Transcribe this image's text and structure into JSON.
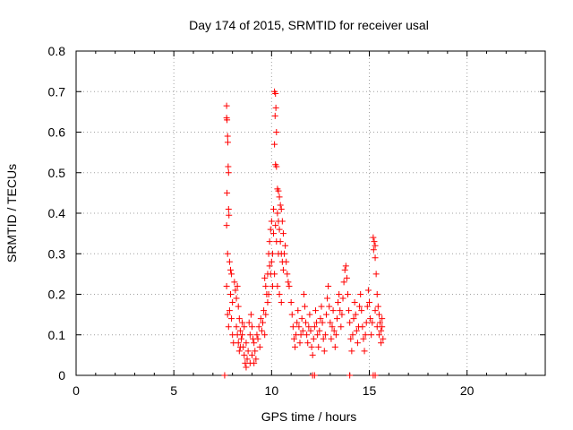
{
  "chart_data": {
    "type": "scatter",
    "title": "Day 174 of 2015, SRMTID for receiver usal",
    "xlabel": "GPS time / hours",
    "ylabel": "SRMTID / TECUs",
    "xlim": [
      0,
      24
    ],
    "ylim": [
      0,
      0.8
    ],
    "x_ticks": [
      0,
      5,
      10,
      15,
      20
    ],
    "y_ticks": [
      0,
      0.1,
      0.2,
      0.3,
      0.4,
      0.5,
      0.6,
      0.7,
      0.8
    ],
    "x_tick_labels": [
      "0",
      "5",
      "10",
      "15",
      "20"
    ],
    "y_tick_labels": [
      "0",
      "0.1",
      "0.2",
      "0.3",
      "0.4",
      "0.5",
      "0.6",
      "0.7",
      "0.8"
    ],
    "grid": true,
    "marker": "+",
    "color": "#ff0000",
    "series": [
      {
        "name": "SRMTID",
        "points": [
          [
            7.6,
            0.0
          ],
          [
            12.1,
            0.0
          ],
          [
            12.2,
            0.0
          ],
          [
            14.0,
            0.0
          ],
          [
            15.2,
            0.0
          ],
          [
            15.3,
            0.0
          ],
          [
            7.7,
            0.665
          ],
          [
            7.7,
            0.635
          ],
          [
            7.72,
            0.63
          ],
          [
            7.75,
            0.59
          ],
          [
            7.76,
            0.575
          ],
          [
            7.78,
            0.515
          ],
          [
            7.8,
            0.5
          ],
          [
            7.72,
            0.45
          ],
          [
            7.8,
            0.41
          ],
          [
            7.82,
            0.395
          ],
          [
            7.7,
            0.37
          ],
          [
            7.75,
            0.3
          ],
          [
            7.85,
            0.28
          ],
          [
            7.9,
            0.26
          ],
          [
            7.95,
            0.25
          ],
          [
            7.7,
            0.22
          ],
          [
            7.9,
            0.2
          ],
          [
            8.0,
            0.18
          ],
          [
            7.75,
            0.15
          ],
          [
            7.8,
            0.12
          ],
          [
            7.85,
            0.16
          ],
          [
            7.95,
            0.14
          ],
          [
            8.0,
            0.1
          ],
          [
            8.05,
            0.08
          ],
          [
            8.1,
            0.23
          ],
          [
            8.15,
            0.21
          ],
          [
            8.2,
            0.19
          ],
          [
            8.25,
            0.22
          ],
          [
            8.3,
            0.17
          ],
          [
            8.35,
            0.14
          ],
          [
            8.2,
            0.12
          ],
          [
            8.25,
            0.1
          ],
          [
            8.3,
            0.08
          ],
          [
            8.35,
            0.06
          ],
          [
            8.4,
            0.11
          ],
          [
            8.45,
            0.09
          ],
          [
            8.5,
            0.13
          ],
          [
            8.55,
            0.07
          ],
          [
            8.6,
            0.05
          ],
          [
            8.65,
            0.03
          ],
          [
            8.7,
            0.02
          ],
          [
            8.75,
            0.04
          ],
          [
            8.4,
            0.07
          ],
          [
            8.5,
            0.1
          ],
          [
            8.6,
            0.12
          ],
          [
            8.7,
            0.08
          ],
          [
            8.8,
            0.06
          ],
          [
            8.9,
            0.1
          ],
          [
            9.0,
            0.05
          ],
          [
            9.1,
            0.08
          ],
          [
            9.2,
            0.04
          ],
          [
            9.3,
            0.09
          ],
          [
            9.35,
            0.12
          ],
          [
            9.4,
            0.07
          ],
          [
            9.45,
            0.14
          ],
          [
            9.5,
            0.11
          ],
          [
            9.55,
            0.13
          ],
          [
            9.6,
            0.16
          ],
          [
            9.0,
            0.12
          ],
          [
            9.1,
            0.03
          ],
          [
            8.95,
            0.15
          ],
          [
            8.85,
            0.13
          ],
          [
            9.25,
            0.1
          ],
          [
            9.15,
            0.06
          ],
          [
            9.05,
            0.09
          ],
          [
            8.9,
            0.03
          ],
          [
            9.65,
            0.24
          ],
          [
            9.7,
            0.22
          ],
          [
            9.75,
            0.2
          ],
          [
            9.8,
            0.18
          ],
          [
            9.7,
            0.15
          ],
          [
            9.65,
            0.1
          ],
          [
            9.85,
            0.3
          ],
          [
            9.9,
            0.33
          ],
          [
            9.95,
            0.36
          ],
          [
            10.0,
            0.38
          ],
          [
            9.9,
            0.27
          ],
          [
            9.95,
            0.25
          ],
          [
            10.05,
            0.3
          ],
          [
            10.1,
            0.35
          ],
          [
            10.0,
            0.28
          ],
          [
            10.05,
            0.22
          ],
          [
            9.8,
            0.25
          ],
          [
            9.85,
            0.2
          ],
          [
            10.15,
            0.7
          ],
          [
            10.2,
            0.695
          ],
          [
            10.22,
            0.66
          ],
          [
            10.18,
            0.64
          ],
          [
            10.25,
            0.6
          ],
          [
            10.15,
            0.57
          ],
          [
            10.2,
            0.52
          ],
          [
            10.25,
            0.515
          ],
          [
            10.3,
            0.46
          ],
          [
            10.35,
            0.455
          ],
          [
            10.4,
            0.44
          ],
          [
            10.45,
            0.42
          ],
          [
            10.3,
            0.4
          ],
          [
            10.35,
            0.38
          ],
          [
            10.4,
            0.36
          ],
          [
            10.5,
            0.41
          ],
          [
            10.55,
            0.38
          ],
          [
            10.6,
            0.35
          ],
          [
            10.45,
            0.33
          ],
          [
            10.5,
            0.3
          ],
          [
            10.55,
            0.28
          ],
          [
            10.6,
            0.26
          ],
          [
            10.65,
            0.3
          ],
          [
            10.7,
            0.32
          ],
          [
            10.75,
            0.28
          ],
          [
            10.8,
            0.25
          ],
          [
            10.85,
            0.23
          ],
          [
            10.9,
            0.22
          ],
          [
            10.35,
            0.3
          ],
          [
            10.25,
            0.33
          ],
          [
            10.2,
            0.37
          ],
          [
            10.1,
            0.41
          ],
          [
            10.15,
            0.25
          ],
          [
            10.3,
            0.22
          ],
          [
            10.4,
            0.2
          ],
          [
            10.5,
            0.18
          ],
          [
            11.0,
            0.18
          ],
          [
            11.05,
            0.15
          ],
          [
            11.1,
            0.12
          ],
          [
            11.15,
            0.09
          ],
          [
            11.2,
            0.07
          ],
          [
            11.25,
            0.1
          ],
          [
            11.3,
            0.13
          ],
          [
            11.35,
            0.16
          ],
          [
            11.4,
            0.12
          ],
          [
            11.45,
            0.08
          ],
          [
            11.5,
            0.1
          ],
          [
            11.55,
            0.14
          ],
          [
            11.6,
            0.11
          ],
          [
            11.65,
            0.2
          ],
          [
            11.7,
            0.17
          ],
          [
            11.75,
            0.13
          ],
          [
            11.8,
            0.1
          ],
          [
            11.85,
            0.08
          ],
          [
            11.9,
            0.12
          ],
          [
            11.95,
            0.15
          ],
          [
            12.0,
            0.11
          ],
          [
            12.05,
            0.07
          ],
          [
            12.1,
            0.05
          ],
          [
            12.15,
            0.09
          ],
          [
            12.2,
            0.12
          ],
          [
            12.25,
            0.16
          ],
          [
            12.3,
            0.13
          ],
          [
            12.35,
            0.1
          ],
          [
            12.4,
            0.07
          ],
          [
            12.45,
            0.11
          ],
          [
            12.5,
            0.14
          ],
          [
            12.55,
            0.17
          ],
          [
            12.6,
            0.13
          ],
          [
            12.65,
            0.09
          ],
          [
            12.7,
            0.06
          ],
          [
            12.75,
            0.1
          ],
          [
            12.8,
            0.15
          ],
          [
            12.85,
            0.19
          ],
          [
            12.9,
            0.22
          ],
          [
            12.95,
            0.17
          ],
          [
            13.0,
            0.13
          ],
          [
            13.05,
            0.09
          ],
          [
            13.1,
            0.12
          ],
          [
            13.15,
            0.16
          ],
          [
            13.2,
            0.11
          ],
          [
            13.25,
            0.07
          ],
          [
            13.3,
            0.1
          ],
          [
            13.35,
            0.14
          ],
          [
            13.4,
            0.18
          ],
          [
            13.45,
            0.2
          ],
          [
            13.5,
            0.16
          ],
          [
            13.55,
            0.12
          ],
          [
            13.6,
            0.15
          ],
          [
            13.65,
            0.19
          ],
          [
            13.7,
            0.23
          ],
          [
            13.75,
            0.26
          ],
          [
            13.8,
            0.27
          ],
          [
            13.85,
            0.24
          ],
          [
            13.9,
            0.2
          ],
          [
            13.95,
            0.16
          ],
          [
            14.0,
            0.13
          ],
          [
            14.05,
            0.09
          ],
          [
            14.1,
            0.06
          ],
          [
            14.15,
            0.1
          ],
          [
            14.2,
            0.14
          ],
          [
            14.25,
            0.18
          ],
          [
            14.3,
            0.15
          ],
          [
            14.35,
            0.11
          ],
          [
            14.4,
            0.08
          ],
          [
            14.45,
            0.12
          ],
          [
            14.5,
            0.17
          ],
          [
            14.55,
            0.2
          ],
          [
            14.6,
            0.16
          ],
          [
            14.65,
            0.12
          ],
          [
            14.7,
            0.09
          ],
          [
            14.75,
            0.06
          ],
          [
            14.8,
            0.1
          ],
          [
            14.85,
            0.13
          ],
          [
            14.9,
            0.17
          ],
          [
            14.95,
            0.21
          ],
          [
            15.0,
            0.18
          ],
          [
            15.05,
            0.14
          ],
          [
            15.1,
            0.1
          ],
          [
            15.15,
            0.13
          ],
          [
            15.2,
            0.34
          ],
          [
            15.25,
            0.33
          ],
          [
            15.3,
            0.32
          ],
          [
            15.22,
            0.31
          ],
          [
            15.3,
            0.29
          ],
          [
            15.35,
            0.25
          ],
          [
            15.4,
            0.2
          ],
          [
            15.45,
            0.17
          ],
          [
            15.5,
            0.15
          ],
          [
            15.55,
            0.13
          ],
          [
            15.6,
            0.11
          ],
          [
            15.65,
            0.14
          ],
          [
            15.3,
            0.16
          ],
          [
            15.4,
            0.12
          ],
          [
            15.5,
            0.1
          ],
          [
            15.6,
            0.08
          ],
          [
            15.65,
            0.12
          ],
          [
            15.7,
            0.09
          ]
        ]
      }
    ]
  }
}
